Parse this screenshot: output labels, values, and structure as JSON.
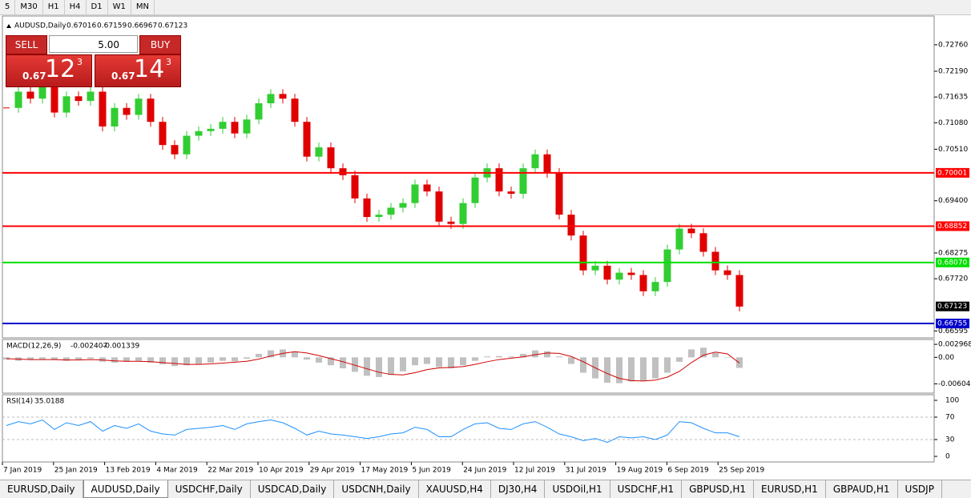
{
  "toolbar": {
    "timeframes": [
      "5",
      "M30",
      "H1",
      "H4",
      "D1",
      "W1",
      "MN"
    ]
  },
  "chart": {
    "symbol": "AUDUSD,Daily",
    "ohlc": [
      0.67016,
      0.67159,
      0.66967,
      0.67123
    ],
    "ylim": [
      0.6648,
      0.7338
    ],
    "price_ticks": [
      {
        "value": 0.7276,
        "label": "0.72760"
      },
      {
        "value": 0.7219,
        "label": "0.72190"
      },
      0.71635,
      {
        "value": 0.7108,
        "label": "0.71080"
      },
      {
        "value": 0.7051,
        "label": "0.70510"
      },
      {
        "value": 0.694,
        "label": "0.69400"
      },
      0.68275,
      {
        "value": 0.6772,
        "label": "0.67720"
      },
      0.66595
    ],
    "levels": [
      {
        "price": 0.70001,
        "color": "#ff0000"
      },
      {
        "price": 0.68852,
        "color": "#ff0000"
      },
      {
        "price": {
          "value": 0.6807,
          "label": "0.68070"
        },
        "color": "#00e000"
      },
      {
        "price": 0.66755,
        "color": "#0000cc"
      }
    ],
    "current": 0.67123,
    "closes": [
      0.714,
      0.7175,
      0.716,
      0.7185,
      0.713,
      0.7165,
      0.7155,
      0.7175,
      0.71,
      0.714,
      0.7125,
      0.716,
      0.711,
      0.706,
      0.704,
      0.708,
      0.709,
      0.7095,
      0.711,
      0.7085,
      0.7115,
      0.715,
      0.717,
      0.716,
      0.711,
      0.7035,
      0.7055,
      0.701,
      0.6995,
      0.6945,
      0.6905,
      0.691,
      0.6925,
      0.6935,
      0.6975,
      0.696,
      0.6895,
      0.689,
      0.6935,
      0.699,
      0.701,
      0.696,
      0.6955,
      0.701,
      0.704,
      0.7,
      0.691,
      0.6865,
      0.679,
      0.68,
      0.677,
      0.6785,
      0.678,
      0.6745,
      0.6765,
      0.6835,
      0.688,
      0.687,
      0.683,
      0.679,
      0.678,
      0.6712
    ],
    "up_color": "#32cd32",
    "down_color": "#e00000"
  },
  "trade_panel": {
    "sell": "SELL",
    "buy": "BUY",
    "lot": {
      "value": 5,
      "label": "5.00"
    },
    "bid": {
      "big": "0.67",
      "main": "12",
      "pip": "3"
    },
    "ask": {
      "big": "0.67",
      "main": "14",
      "pip": "3"
    }
  },
  "macd": {
    "title": "MACD(12,26,9)",
    "main": -0.002407,
    "signal_value": -0.001339,
    "ylim": [
      -0.00816,
      0.00408
    ],
    "ticks": [
      0.002968,
      {
        "value": 0,
        "label": "0.00"
      },
      -0.006047
    ],
    "hist": [
      -0.0005,
      -0.0008,
      -0.0006,
      -0.0004,
      -0.0006,
      -0.0008,
      -0.0005,
      -0.0003,
      -0.001,
      -0.0012,
      -0.001,
      -0.0008,
      -0.0012,
      -0.0016,
      -0.002,
      -0.0018,
      -0.0015,
      -0.0012,
      -0.0008,
      -0.0009,
      -0.0003,
      0.0008,
      0.0016,
      0.0018,
      0.0012,
      -0.0005,
      -0.0012,
      -0.0018,
      -0.0025,
      -0.0033,
      -0.0042,
      -0.0045,
      -0.004,
      -0.0032,
      -0.0018,
      -0.0015,
      -0.0022,
      -0.0025,
      -0.0018,
      -0.0008,
      0.0002,
      0.0003,
      0.0002,
      0.0008,
      0.0016,
      0.0014,
      0.0002,
      -0.0015,
      -0.0035,
      -0.0048,
      -0.0058,
      -0.0059,
      -0.0055,
      -0.0054,
      -0.0048,
      -0.0035,
      -0.001,
      0.0018,
      0.0022,
      0.001,
      0,
      -0.0024
    ],
    "signal": [
      -0.0003,
      -0.0004,
      -0.0005,
      -0.0005,
      -0.0005,
      -0.0006,
      -0.0006,
      -0.0005,
      -0.0006,
      -0.0008,
      -0.0009,
      -0.0009,
      -0.001,
      -0.0012,
      -0.0014,
      -0.0016,
      -0.0016,
      -0.0015,
      -0.0013,
      -0.0011,
      -0.0009,
      -0.0004,
      0.0003,
      0.0009,
      0.0013,
      0.001,
      0.0004,
      -0.0003,
      -0.001,
      -0.0018,
      -0.0026,
      -0.0034,
      -0.0039,
      -0.004,
      -0.0035,
      -0.0028,
      -0.0024,
      -0.0023,
      -0.0021,
      -0.0016,
      -0.001,
      -0.0005,
      -0.0002,
      0.0001,
      0.0006,
      0.001,
      0.0009,
      0.0002,
      -0.001,
      -0.0024,
      -0.0037,
      -0.0048,
      -0.0053,
      -0.0054,
      -0.0052,
      -0.0045,
      -0.0032,
      -0.0012,
      0.0005,
      0.0012,
      0.0008,
      -0.0013
    ]
  },
  "rsi": {
    "title": "RSI(14)",
    "value": 35.0188,
    "ylim": [
      -10,
      110
    ],
    "ticks": [
      100,
      70,
      30,
      0
    ],
    "levels": [
      70,
      30
    ],
    "values": [
      55,
      62,
      58,
      65,
      48,
      60,
      55,
      62,
      45,
      55,
      50,
      58,
      45,
      40,
      38,
      48,
      50,
      52,
      55,
      48,
      58,
      62,
      65,
      60,
      50,
      38,
      45,
      40,
      38,
      35,
      32,
      35,
      40,
      42,
      52,
      48,
      35,
      35,
      48,
      58,
      60,
      50,
      48,
      58,
      62,
      52,
      40,
      35,
      28,
      32,
      25,
      35,
      33,
      35,
      30,
      38,
      62,
      60,
      50,
      42,
      42,
      35
    ]
  },
  "time_labels": [
    "7 Jan 2019",
    "25 Jan 2019",
    "13 Feb 2019",
    "4 Mar 2019",
    "22 Mar 2019",
    "10 Apr 2019",
    "29 Apr 2019",
    "17 May 2019",
    "5 Jun 2019",
    "24 Jun 2019",
    "12 Jul 2019",
    "31 Jul 2019",
    "19 Aug 2019",
    "6 Sep 2019",
    "25 Sep 2019"
  ],
  "tabs": {
    "items": [
      "EURUSD,Daily",
      "AUDUSD,Daily",
      "USDCHF,Daily",
      "USDCAD,Daily",
      "USDCNH,Daily",
      "XAUUSD,H4",
      "DJ30,H4",
      "USDOil,H1",
      "USDCHF,H1",
      "GBPUSD,H1",
      "EURUSD,H1",
      "GBPAUD,H1",
      "USDJP"
    ],
    "active": 1
  }
}
